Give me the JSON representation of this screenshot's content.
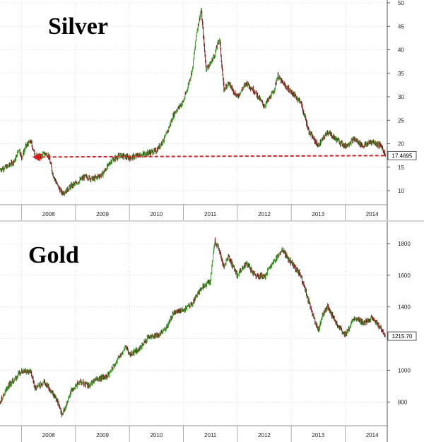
{
  "chart_data": [
    {
      "type": "line",
      "style": "ohlc-candlestick",
      "title": "Silver",
      "xlabel": "",
      "ylabel": "",
      "x_tick_labels": [
        "2008",
        "2009",
        "2010",
        "2011",
        "2012",
        "2013",
        "2014"
      ],
      "y_tick_labels": [
        "10",
        "15",
        "20",
        "25",
        "30",
        "35",
        "40",
        "45",
        "50"
      ],
      "ylim": [
        7,
        50
      ],
      "xlim": [
        2007.6,
        2014.78
      ],
      "grid": true,
      "last_value_label": "17.4695",
      "annotation": "red dashed arrow from latest price (17.47) back to early 2008 at the same level",
      "colors": {
        "up": "#3a9b2a",
        "down": "#7a1a1a",
        "arrow": "#e31a1c",
        "grid": "#c8c8c8"
      },
      "series": [
        {
          "x": [
            2007.6,
            2007.75,
            2007.88,
            2007.95,
            2008.0,
            2008.08,
            2008.17,
            2008.25,
            2008.33,
            2008.42,
            2008.5,
            2008.58,
            2008.67,
            2008.75,
            2008.83,
            2008.92,
            2009.0,
            2009.17,
            2009.33,
            2009.5,
            2009.67,
            2009.83,
            2010.0,
            2010.17,
            2010.33,
            2010.5,
            2010.67,
            2010.83,
            2011.0,
            2011.08,
            2011.17,
            2011.25,
            2011.33,
            2011.42,
            2011.5,
            2011.58,
            2011.67,
            2011.75,
            2011.83,
            2012.0,
            2012.17,
            2012.33,
            2012.5,
            2012.67,
            2012.75,
            2012.83,
            2013.0,
            2013.17,
            2013.33,
            2013.5,
            2013.67,
            2013.83,
            2014.0,
            2014.17,
            2014.33,
            2014.5,
            2014.67,
            2014.75
          ],
          "y": [
            14.5,
            15.2,
            16.5,
            19.0,
            17.0,
            19.5,
            20.5,
            17.5,
            17.0,
            18.0,
            17.5,
            13.5,
            11.0,
            9.5,
            10.0,
            11.0,
            11.5,
            13.0,
            12.5,
            13.5,
            16.5,
            17.5,
            17.0,
            17.5,
            18.0,
            18.5,
            21.5,
            26.5,
            29.0,
            32.0,
            36.0,
            44.0,
            48.5,
            36.0,
            37.0,
            39.0,
            42.5,
            31.5,
            33.0,
            30.0,
            33.0,
            31.0,
            28.0,
            31.0,
            34.5,
            33.0,
            31.0,
            29.0,
            22.5,
            19.5,
            22.5,
            21.0,
            19.5,
            21.0,
            19.5,
            20.5,
            19.5,
            17.47
          ]
        }
      ]
    },
    {
      "type": "line",
      "style": "ohlc-candlestick",
      "title": "Gold",
      "xlabel": "",
      "ylabel": "",
      "x_tick_labels": [
        "2008",
        "2009",
        "2010",
        "2011",
        "2012",
        "2013",
        "2014"
      ],
      "y_tick_labels": [
        "800",
        "1000",
        "1200",
        "1400",
        "1600",
        "1800"
      ],
      "ylim": [
        650,
        1920
      ],
      "xlim": [
        2007.6,
        2014.78
      ],
      "grid": true,
      "last_value_label": "1215.70",
      "colors": {
        "up": "#3a9b2a",
        "down": "#7a1a1a",
        "grid": "#c8c8c8"
      },
      "series": [
        {
          "x": [
            2007.6,
            2007.75,
            2007.92,
            2008.0,
            2008.17,
            2008.25,
            2008.42,
            2008.58,
            2008.67,
            2008.75,
            2008.83,
            2008.92,
            2009.08,
            2009.25,
            2009.42,
            2009.58,
            2009.75,
            2009.92,
            2010.0,
            2010.17,
            2010.33,
            2010.5,
            2010.67,
            2010.83,
            2011.0,
            2011.17,
            2011.33,
            2011.5,
            2011.58,
            2011.67,
            2011.75,
            2011.83,
            2012.0,
            2012.17,
            2012.33,
            2012.5,
            2012.67,
            2012.83,
            2013.0,
            2013.17,
            2013.25,
            2013.33,
            2013.5,
            2013.58,
            2013.67,
            2013.83,
            2014.0,
            2014.17,
            2014.33,
            2014.5,
            2014.67,
            2014.75
          ],
          "y": [
            800,
            900,
            960,
            1000,
            990,
            880,
            930,
            850,
            800,
            720,
            780,
            870,
            930,
            900,
            950,
            960,
            1050,
            1150,
            1100,
            1130,
            1200,
            1220,
            1260,
            1370,
            1380,
            1420,
            1520,
            1560,
            1820,
            1750,
            1650,
            1720,
            1600,
            1680,
            1600,
            1590,
            1680,
            1760,
            1680,
            1600,
            1520,
            1420,
            1250,
            1350,
            1400,
            1300,
            1220,
            1330,
            1300,
            1330,
            1260,
            1215.7
          ]
        }
      ]
    }
  ]
}
